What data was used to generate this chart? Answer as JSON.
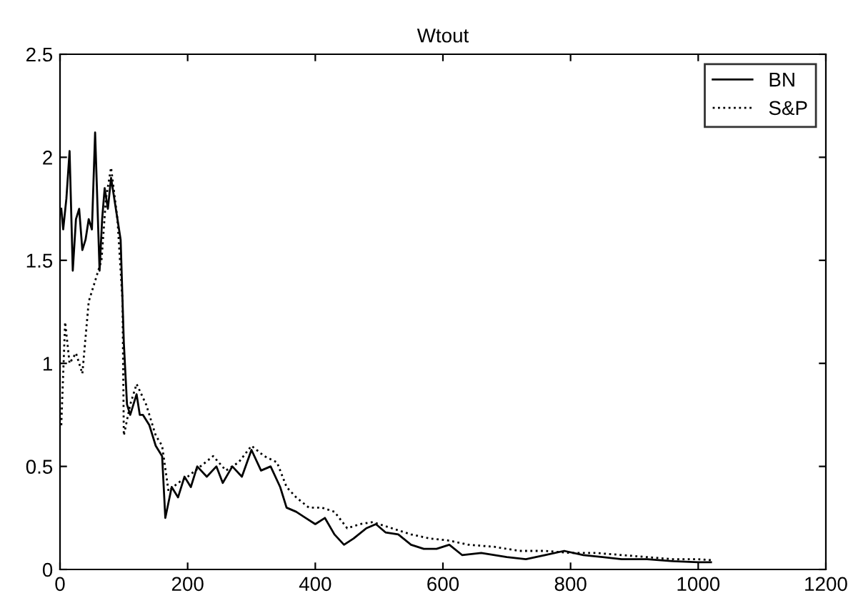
{
  "chart_data": {
    "type": "line",
    "title": "Wtout",
    "series": [
      {
        "name": "BN",
        "color": "#000000",
        "line_style": "solid",
        "x": [
          2,
          5,
          10,
          15,
          20,
          25,
          30,
          35,
          40,
          45,
          50,
          55,
          62,
          66,
          70,
          75,
          80,
          85,
          90,
          95,
          100,
          105,
          110,
          115,
          120,
          125,
          130,
          140,
          150,
          160,
          165,
          175,
          185,
          195,
          205,
          215,
          230,
          245,
          255,
          270,
          285,
          300,
          315,
          330,
          345,
          355,
          370,
          385,
          400,
          415,
          430,
          445,
          460,
          480,
          495,
          510,
          530,
          550,
          570,
          590,
          610,
          630,
          660,
          700,
          730,
          760,
          790,
          820,
          850,
          880,
          920,
          960,
          1000,
          1020
        ],
        "values": [
          1.75,
          1.65,
          1.8,
          2.03,
          1.45,
          1.7,
          1.75,
          1.55,
          1.6,
          1.7,
          1.65,
          2.12,
          1.45,
          1.7,
          1.85,
          1.75,
          1.9,
          1.8,
          1.7,
          1.6,
          1.1,
          0.8,
          0.75,
          0.8,
          0.85,
          0.75,
          0.75,
          0.7,
          0.6,
          0.55,
          0.25,
          0.4,
          0.35,
          0.45,
          0.4,
          0.5,
          0.45,
          0.5,
          0.42,
          0.5,
          0.45,
          0.58,
          0.48,
          0.5,
          0.4,
          0.3,
          0.28,
          0.25,
          0.22,
          0.25,
          0.17,
          0.12,
          0.15,
          0.2,
          0.22,
          0.18,
          0.17,
          0.12,
          0.1,
          0.1,
          0.12,
          0.07,
          0.08,
          0.06,
          0.05,
          0.07,
          0.09,
          0.07,
          0.06,
          0.05,
          0.05,
          0.04,
          0.035,
          0.035
        ]
      },
      {
        "name": "S&P",
        "color": "#000000",
        "line_style": "dotted",
        "x": [
          2,
          8,
          15,
          25,
          35,
          45,
          55,
          65,
          72,
          80,
          90,
          98,
          100,
          110,
          120,
          135,
          150,
          160,
          170,
          185,
          200,
          220,
          240,
          260,
          280,
          300,
          320,
          340,
          355,
          370,
          390,
          410,
          430,
          450,
          470,
          490,
          520,
          550,
          580,
          610,
          640,
          680,
          720,
          760,
          800,
          840,
          880,
          920,
          960,
          1000,
          1020
        ],
        "values": [
          0.7,
          1.2,
          1.0,
          1.05,
          0.95,
          1.3,
          1.4,
          1.5,
          1.8,
          1.95,
          1.7,
          1.3,
          0.65,
          0.8,
          0.9,
          0.8,
          0.65,
          0.6,
          0.38,
          0.42,
          0.45,
          0.5,
          0.55,
          0.48,
          0.52,
          0.6,
          0.55,
          0.52,
          0.4,
          0.35,
          0.3,
          0.3,
          0.28,
          0.2,
          0.22,
          0.23,
          0.2,
          0.17,
          0.15,
          0.14,
          0.12,
          0.11,
          0.09,
          0.09,
          0.08,
          0.08,
          0.07,
          0.06,
          0.05,
          0.05,
          0.045
        ]
      }
    ],
    "xlim": [
      0,
      1200
    ],
    "xticks": [
      0,
      200,
      400,
      600,
      800,
      1000,
      1200
    ],
    "ylim": [
      0,
      2.5
    ],
    "yticks": [
      0,
      0.5,
      1,
      1.5,
      2,
      2.5
    ],
    "grid": false,
    "legend": "top right"
  }
}
